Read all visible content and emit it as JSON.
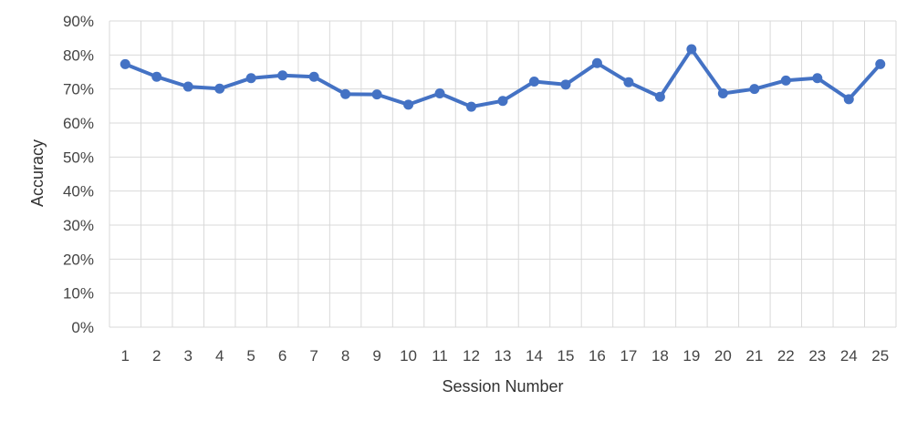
{
  "chart_data": {
    "type": "line",
    "title": "",
    "xlabel": "Session Number",
    "ylabel": "Accuracy",
    "categories": [
      "1",
      "2",
      "3",
      "4",
      "5",
      "6",
      "7",
      "8",
      "9",
      "10",
      "11",
      "12",
      "13",
      "14",
      "15",
      "16",
      "17",
      "18",
      "19",
      "20",
      "21",
      "22",
      "23",
      "24",
      "25"
    ],
    "y_ticks": [
      "0%",
      "10%",
      "20%",
      "30%",
      "40%",
      "50%",
      "60%",
      "70%",
      "80%",
      "90%"
    ],
    "ylim": [
      0,
      90
    ],
    "y_step": 10,
    "grid": true,
    "legend": "none",
    "series": [
      {
        "values": [
          77.3,
          73.6,
          70.7,
          70.1,
          73.2,
          74.0,
          73.6,
          68.5,
          68.4,
          65.4,
          68.7,
          64.8,
          66.5,
          72.2,
          71.3,
          77.6,
          72.0,
          67.7,
          81.7,
          68.7,
          70.0,
          72.5,
          73.2,
          67.0,
          77.3
        ],
        "color": "#4472c4"
      }
    ],
    "colors": {
      "line": "#4472c4",
      "grid": "#d9d9d9"
    }
  }
}
